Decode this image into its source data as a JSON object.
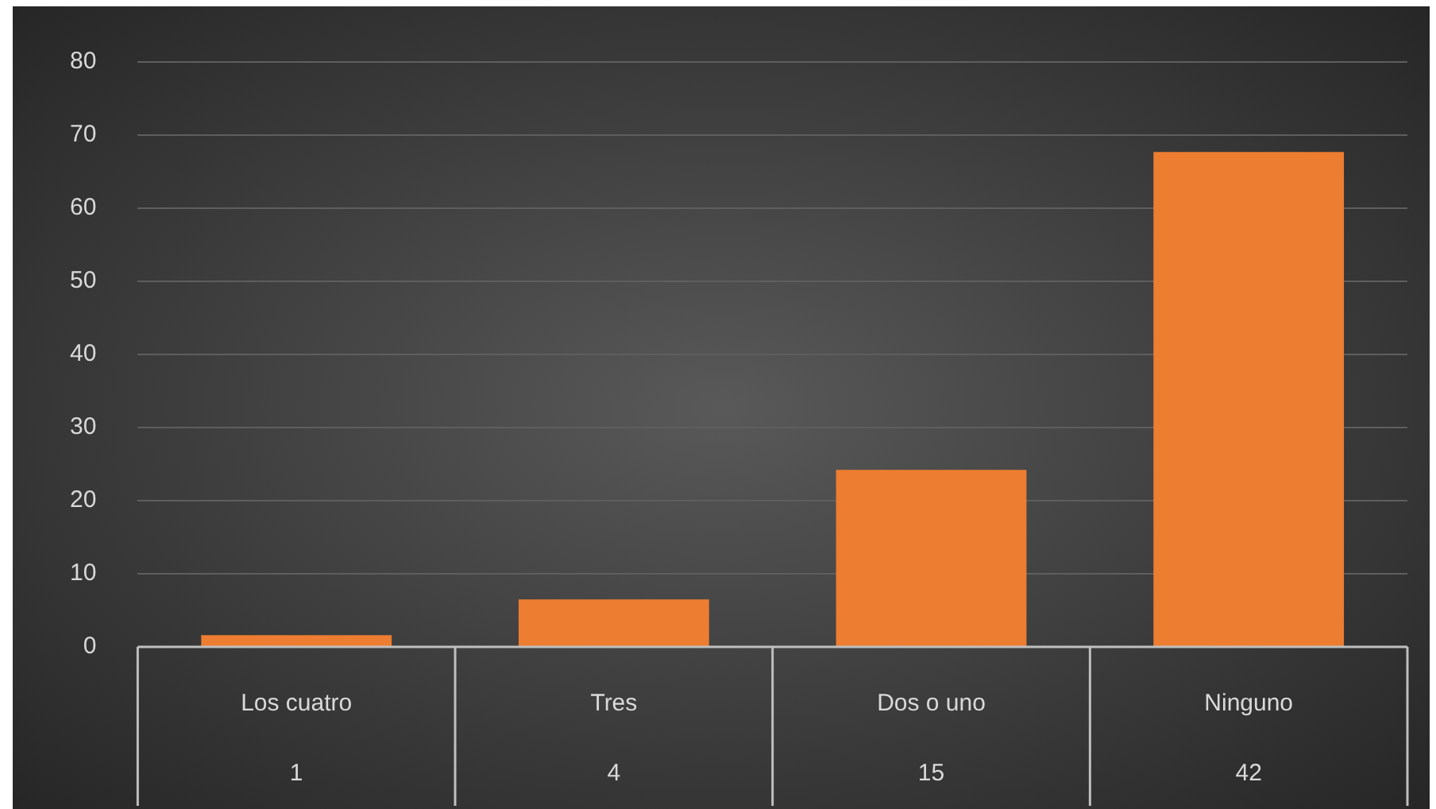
{
  "chart_data": {
    "type": "bar",
    "categories": [
      "Los cuatro",
      "Tres",
      "Dos o uno",
      "Ninguno"
    ],
    "values": [
      1.6,
      6.5,
      24.2,
      67.7
    ],
    "color": "#ed7d31",
    "ylim": [
      0,
      80
    ],
    "yticks": [
      0,
      10,
      20,
      30,
      40,
      50,
      60,
      70,
      80
    ],
    "grid": "y",
    "annotations": [
      "1",
      "4",
      "15",
      "42"
    ]
  }
}
